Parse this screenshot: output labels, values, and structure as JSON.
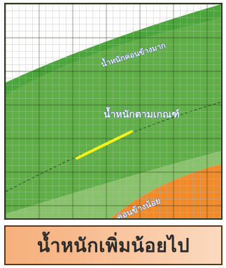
{
  "chart": {
    "zones": {
      "upper": "น้ำหนักค่อนข้างมาก",
      "middle": "น้ำหนักตามเกณฑ์",
      "lower": "ค่อนข้างน้อย"
    },
    "colors": {
      "grid_minor": "#b7bdb0",
      "grid_major": "#2f3b28",
      "zone_upper": "#4aa63a",
      "zone_middle": "#5fae47",
      "zone_lower": "#88c26b",
      "zone_low": "#f08a2a",
      "marker": "#f3f31a",
      "label_text": "#e8f0ff"
    }
  },
  "caption": {
    "text": "น้ำหนักเพิ่มน้อยไป"
  }
}
